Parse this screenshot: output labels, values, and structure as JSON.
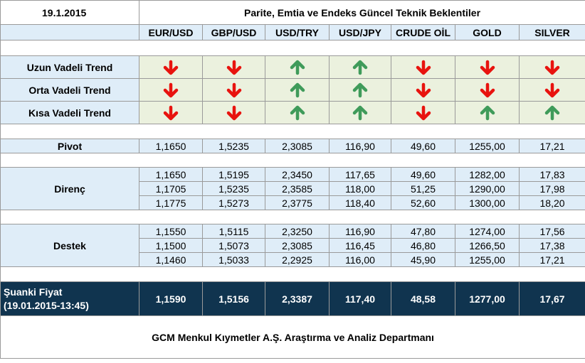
{
  "header": {
    "date": "19.1.2015",
    "title": "Parite, Emtia ve Endeks Güncel Teknik Beklentiler"
  },
  "columns": [
    "EUR/USD",
    "GBP/USD",
    "USD/TRY",
    "USD/JPY",
    "CRUDE OİL",
    "GOLD",
    "SILVER"
  ],
  "trends": [
    {
      "label": "Uzun Vadeli Trend",
      "directions": [
        "down",
        "down",
        "up",
        "up",
        "down",
        "down",
        "down"
      ]
    },
    {
      "label": "Orta Vadeli Trend",
      "directions": [
        "down",
        "down",
        "up",
        "up",
        "down",
        "down",
        "down"
      ]
    },
    {
      "label": "Kısa Vadeli Trend",
      "directions": [
        "down",
        "down",
        "up",
        "up",
        "down",
        "up",
        "up"
      ]
    }
  ],
  "colors": {
    "up": "#3f9b5a",
    "down": "#e8130e",
    "dark_row": "#10344f"
  },
  "pivot": {
    "label": "Pivot",
    "values": [
      "1,1650",
      "1,5235",
      "2,3085",
      "116,90",
      "49,60",
      "1255,00",
      "17,21"
    ]
  },
  "resistance": {
    "label": "Direnç",
    "rows": [
      [
        "1,1650",
        "1,5195",
        "2,3450",
        "117,65",
        "49,60",
        "1282,00",
        "17,83"
      ],
      [
        "1,1705",
        "1,5235",
        "2,3585",
        "118,00",
        "51,25",
        "1290,00",
        "17,98"
      ],
      [
        "1,1775",
        "1,5273",
        "2,3775",
        "118,40",
        "52,60",
        "1300,00",
        "18,20"
      ]
    ]
  },
  "support": {
    "label": "Destek",
    "rows": [
      [
        "1,1550",
        "1,5115",
        "2,3250",
        "116,90",
        "47,80",
        "1274,00",
        "17,56"
      ],
      [
        "1,1500",
        "1,5073",
        "2,3085",
        "116,45",
        "46,80",
        "1266,50",
        "17,38"
      ],
      [
        "1,1460",
        "1,5033",
        "2,2925",
        "116,00",
        "45,90",
        "1255,00",
        "17,21"
      ]
    ]
  },
  "current": {
    "label_line1": "Şuanki Fiyat",
    "label_line2": "(19.01.2015-13:45)",
    "values": [
      "1,1590",
      "1,5156",
      "2,3387",
      "117,40",
      "48,58",
      "1277,00",
      "17,67"
    ]
  },
  "footer": "GCM Menkul Kıymetler A.Ş. Araştırma ve Analiz Departmanı"
}
